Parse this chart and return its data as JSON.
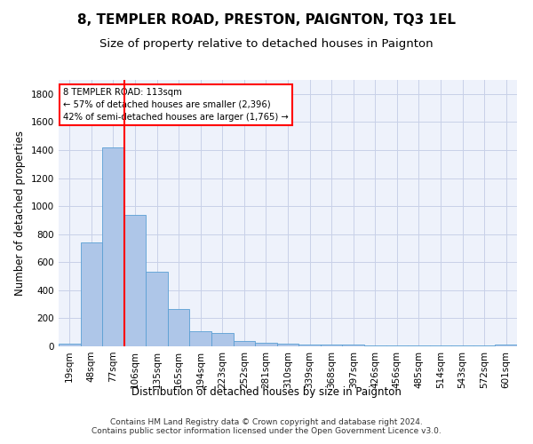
{
  "title": "8, TEMPLER ROAD, PRESTON, PAIGNTON, TQ3 1EL",
  "subtitle": "Size of property relative to detached houses in Paignton",
  "xlabel": "Distribution of detached houses by size in Paignton",
  "ylabel": "Number of detached properties",
  "categories": [
    "19sqm",
    "48sqm",
    "77sqm",
    "106sqm",
    "135sqm",
    "165sqm",
    "194sqm",
    "223sqm",
    "252sqm",
    "281sqm",
    "310sqm",
    "339sqm",
    "368sqm",
    "397sqm",
    "426sqm",
    "456sqm",
    "485sqm",
    "514sqm",
    "543sqm",
    "572sqm",
    "601sqm"
  ],
  "values": [
    20,
    740,
    1420,
    940,
    530,
    265,
    105,
    95,
    40,
    28,
    20,
    15,
    12,
    10,
    8,
    8,
    5,
    5,
    5,
    5,
    15
  ],
  "bar_color": "#aec6e8",
  "bar_edge_color": "#5a9fd4",
  "vline_color": "red",
  "annotation_line1": "8 TEMPLER ROAD: 113sqm",
  "annotation_line2": "← 57% of detached houses are smaller (2,396)",
  "annotation_line3": "42% of semi-detached houses are larger (1,765) →",
  "annotation_box_color": "white",
  "annotation_box_edge_color": "red",
  "ylim": [
    0,
    1900
  ],
  "yticks": [
    0,
    200,
    400,
    600,
    800,
    1000,
    1200,
    1400,
    1600,
    1800
  ],
  "footnote": "Contains HM Land Registry data © Crown copyright and database right 2024.\nContains public sector information licensed under the Open Government Licence v3.0.",
  "background_color": "#eef2fb",
  "grid_color": "#c8d0e8",
  "title_fontsize": 11,
  "subtitle_fontsize": 9.5,
  "axis_label_fontsize": 8.5,
  "tick_fontsize": 7.5,
  "footnote_fontsize": 6.5
}
